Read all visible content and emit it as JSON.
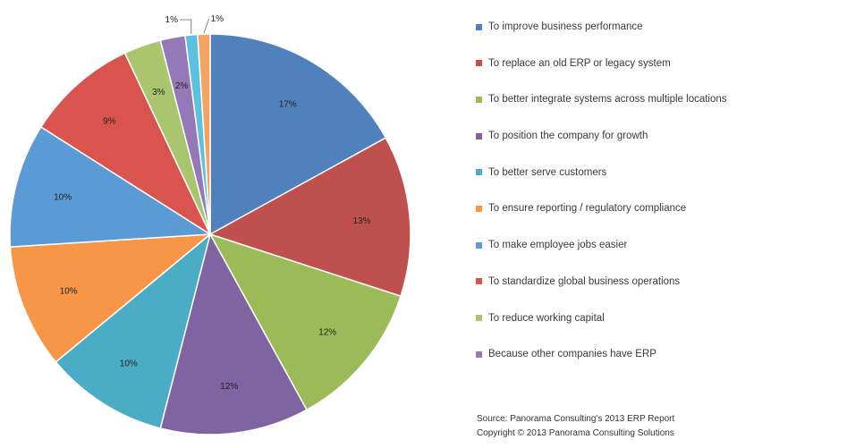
{
  "chart_data": {
    "type": "pie",
    "title": "",
    "slices": [
      {
        "label": "To improve business performance",
        "value": 17,
        "display": "17%",
        "color": "#4f81bd"
      },
      {
        "label": "To replace an old ERP or legacy system",
        "value": 13,
        "display": "13%",
        "color": "#c0504d"
      },
      {
        "label": "To better integrate systems across multiple locations",
        "value": 12,
        "display": "12%",
        "color": "#9bbb59"
      },
      {
        "label": "To position the company for growth",
        "value": 12,
        "display": "12%",
        "color": "#8064a2"
      },
      {
        "label": "To better serve customers",
        "value": 10,
        "display": "10%",
        "color": "#4bacc6"
      },
      {
        "label": "To ensure reporting / regulatory compliance",
        "value": 10,
        "display": "10%",
        "color": "#f79646"
      },
      {
        "label": "To make employee jobs easier",
        "value": 10,
        "display": "10%",
        "color": "#5b9bd5"
      },
      {
        "label": "To standardize global business operations",
        "value": 9,
        "display": "9%",
        "color": "#d9534f"
      },
      {
        "label": "To reduce working capital",
        "value": 3,
        "display": "3%",
        "color": "#a9c66f"
      },
      {
        "label": "Because other companies have ERP",
        "value": 2,
        "display": "2%",
        "color": "#9478b8"
      },
      {
        "label": "",
        "value": 1,
        "display": "1%",
        "color": "#5cc1de"
      },
      {
        "label": "",
        "value": 1,
        "display": "1%",
        "color": "#f4a460"
      }
    ],
    "legend_position": "right"
  },
  "source": {
    "line1": "Source: Panorama Consulting's 2013 ERP Report",
    "line2": "Copyright © 2013 Panorama Consulting Solutions"
  }
}
